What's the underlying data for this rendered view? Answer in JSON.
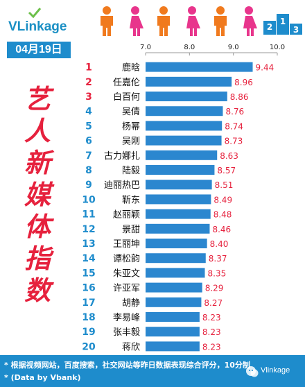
{
  "logo": {
    "text": "VLinkage",
    "prefix": "VL",
    "suffix": "inkage"
  },
  "date": "04月19日",
  "vertical_title": [
    "艺",
    "人",
    "新",
    "媒",
    "体",
    "指",
    "数"
  ],
  "colors": {
    "blue": "#1e8ccc",
    "red": "#e6213d",
    "bar": "#2b87cf",
    "orange": "#f07a1e",
    "pink": "#e8358c"
  },
  "people_icons": [
    "person-orange-icon",
    "person-pink-icon",
    "person-orange-icon",
    "person-pink-icon",
    "person-orange-icon",
    "person-pink-icon"
  ],
  "podium": {
    "labels": [
      "2",
      "1",
      "3"
    ]
  },
  "chart_data": {
    "type": "bar",
    "orientation": "horizontal",
    "axis_ticks": [
      "7.0",
      "8.0",
      "9.0",
      "10.0"
    ],
    "xlim": [
      7.0,
      10.0
    ],
    "ranks": [
      "1",
      "2",
      "3",
      "4",
      "5",
      "6",
      "7",
      "8",
      "9",
      "10",
      "11",
      "12",
      "13",
      "14",
      "15",
      "16",
      "17",
      "18",
      "19",
      "20"
    ],
    "categories": [
      "鹿晗",
      "任嘉伦",
      "白百何",
      "吴倩",
      "杨幂",
      "吴刚",
      "古力娜扎",
      "陆毅",
      "迪丽热巴",
      "靳东",
      "赵丽颖",
      "景甜",
      "王丽坤",
      "谭松韵",
      "朱亚文",
      "许亚军",
      "胡静",
      "李易峰",
      "张丰毅",
      "蒋欣"
    ],
    "values": [
      9.44,
      8.96,
      8.86,
      8.76,
      8.74,
      8.73,
      8.63,
      8.57,
      8.51,
      8.49,
      8.48,
      8.46,
      8.4,
      8.37,
      8.35,
      8.29,
      8.27,
      8.23,
      8.23,
      8.23
    ],
    "value_labels": [
      "9.44",
      "8.96",
      "8.86",
      "8.76",
      "8.74",
      "8.73",
      "8.63",
      "8.57",
      "8.51",
      "8.49",
      "8.48",
      "8.46",
      "8.40",
      "8.37",
      "8.35",
      "8.29",
      "8.27",
      "8.23",
      "8.23",
      "8.23"
    ]
  },
  "footer": {
    "line1": "* 根据视频网站，百度搜索，社交网站等昨日数据表现综合评分，10分制",
    "line2": "* (Data by Vbank)"
  },
  "watermark": {
    "text": "Vlinkage"
  }
}
